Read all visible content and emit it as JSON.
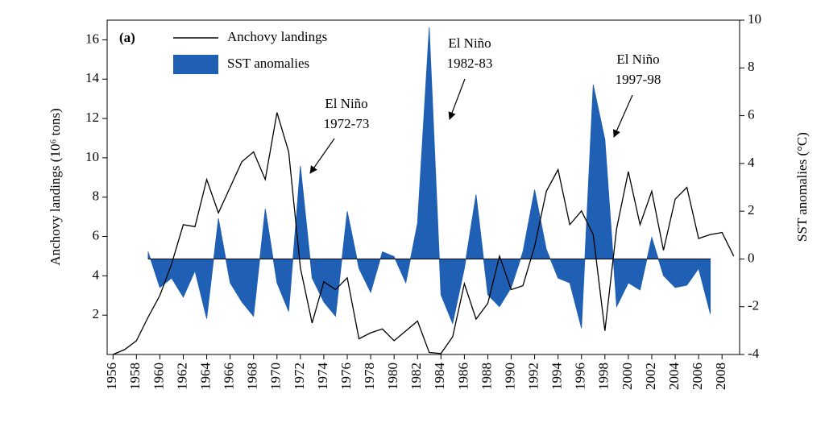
{
  "chart_data": {
    "type": "line",
    "panel_label": "(a)",
    "y_label": "Anchovy landings (10⁶ tons)",
    "y2_label": "SST anomalies (°C)",
    "xlim": [
      1955.5,
      2009.5
    ],
    "xticks": [
      1956,
      1958,
      1960,
      1962,
      1964,
      1966,
      1968,
      1970,
      1972,
      1974,
      1976,
      1978,
      1980,
      1982,
      1984,
      1986,
      1988,
      1990,
      1992,
      1994,
      1996,
      1998,
      2000,
      2002,
      2004,
      2006,
      2008
    ],
    "ylim": [
      0,
      17
    ],
    "yticks": [
      2,
      4,
      6,
      8,
      10,
      12,
      14,
      16
    ],
    "y2lim": [
      -4,
      10
    ],
    "y2ticks": [
      -4,
      -2,
      0,
      2,
      4,
      6,
      8,
      10
    ],
    "legend": "upper left",
    "series": [
      {
        "name": "Anchovy landings",
        "type": "line",
        "color": "#000000",
        "x": [
          1956,
          1957,
          1958,
          1959,
          1960,
          1961,
          1962,
          1963,
          1964,
          1965,
          1966,
          1967,
          1968,
          1969,
          1970,
          1971,
          1972,
          1973,
          1974,
          1975,
          1976,
          1977,
          1978,
          1979,
          1980,
          1981,
          1982,
          1983,
          1984,
          1985,
          1986,
          1987,
          1988,
          1989,
          1990,
          1991,
          1992,
          1993,
          1994,
          1995,
          1996,
          1997,
          1998,
          1999,
          2000,
          2001,
          2002,
          2003,
          2004,
          2005,
          2006,
          2007,
          2008,
          2009
        ],
        "values": [
          0,
          0.25,
          0.7,
          1.9,
          3.0,
          4.6,
          6.6,
          6.5,
          8.9,
          7.2,
          8.5,
          9.8,
          10.3,
          8.9,
          12.3,
          10.3,
          4.4,
          1.6,
          3.7,
          3.3,
          3.9,
          0.8,
          1.1,
          1.3,
          0.7,
          1.2,
          1.7,
          0.1,
          0.05,
          0.9,
          3.6,
          1.8,
          2.6,
          5.0,
          3.3,
          3.5,
          5.5,
          8.3,
          9.4,
          6.6,
          7.3,
          6.1,
          1.2,
          6.4,
          9.3,
          6.6,
          8.3,
          5.3,
          7.9,
          8.5,
          5.9,
          6.1,
          6.2,
          5.0
        ]
      },
      {
        "name": "SST anomalies",
        "type": "area",
        "axis": "y2",
        "color": "#1f5fb4",
        "x": [
          1959,
          1960,
          1961,
          1962,
          1963,
          1964,
          1965,
          1966,
          1967,
          1968,
          1969,
          1970,
          1971,
          1972,
          1973,
          1974,
          1975,
          1976,
          1977,
          1978,
          1979,
          1980,
          1981,
          1982,
          1983,
          1984,
          1985,
          1986,
          1987,
          1988,
          1989,
          1990,
          1991,
          1992,
          1993,
          1994,
          1995,
          1996,
          1997,
          1998,
          1999,
          2000,
          2001,
          2002,
          2003,
          2004,
          2005,
          2006,
          2007
        ],
        "values": [
          0.3,
          -1.2,
          -0.8,
          -1.6,
          -0.5,
          -2.5,
          1.7,
          -1.0,
          -1.8,
          -2.4,
          2.1,
          -1.0,
          -2.2,
          3.9,
          -0.8,
          -1.8,
          -2.4,
          2.0,
          -0.4,
          -1.4,
          0.3,
          0.1,
          -1.0,
          1.5,
          9.7,
          -1.5,
          -2.7,
          -0.4,
          2.7,
          -1.5,
          -2.0,
          -1.2,
          0.3,
          2.9,
          0.4,
          -0.8,
          -1.0,
          -2.9,
          7.3,
          5.0,
          -2.0,
          -1.0,
          -1.3,
          0.9,
          -0.7,
          -1.2,
          -1.1,
          -0.4,
          -2.3
        ]
      }
    ],
    "annotations": [
      {
        "label": "El Niño",
        "period": "1972-73"
      },
      {
        "label": "El Niño",
        "period": "1982-83"
      },
      {
        "label": "El Niño",
        "period": "1997-98"
      }
    ]
  }
}
